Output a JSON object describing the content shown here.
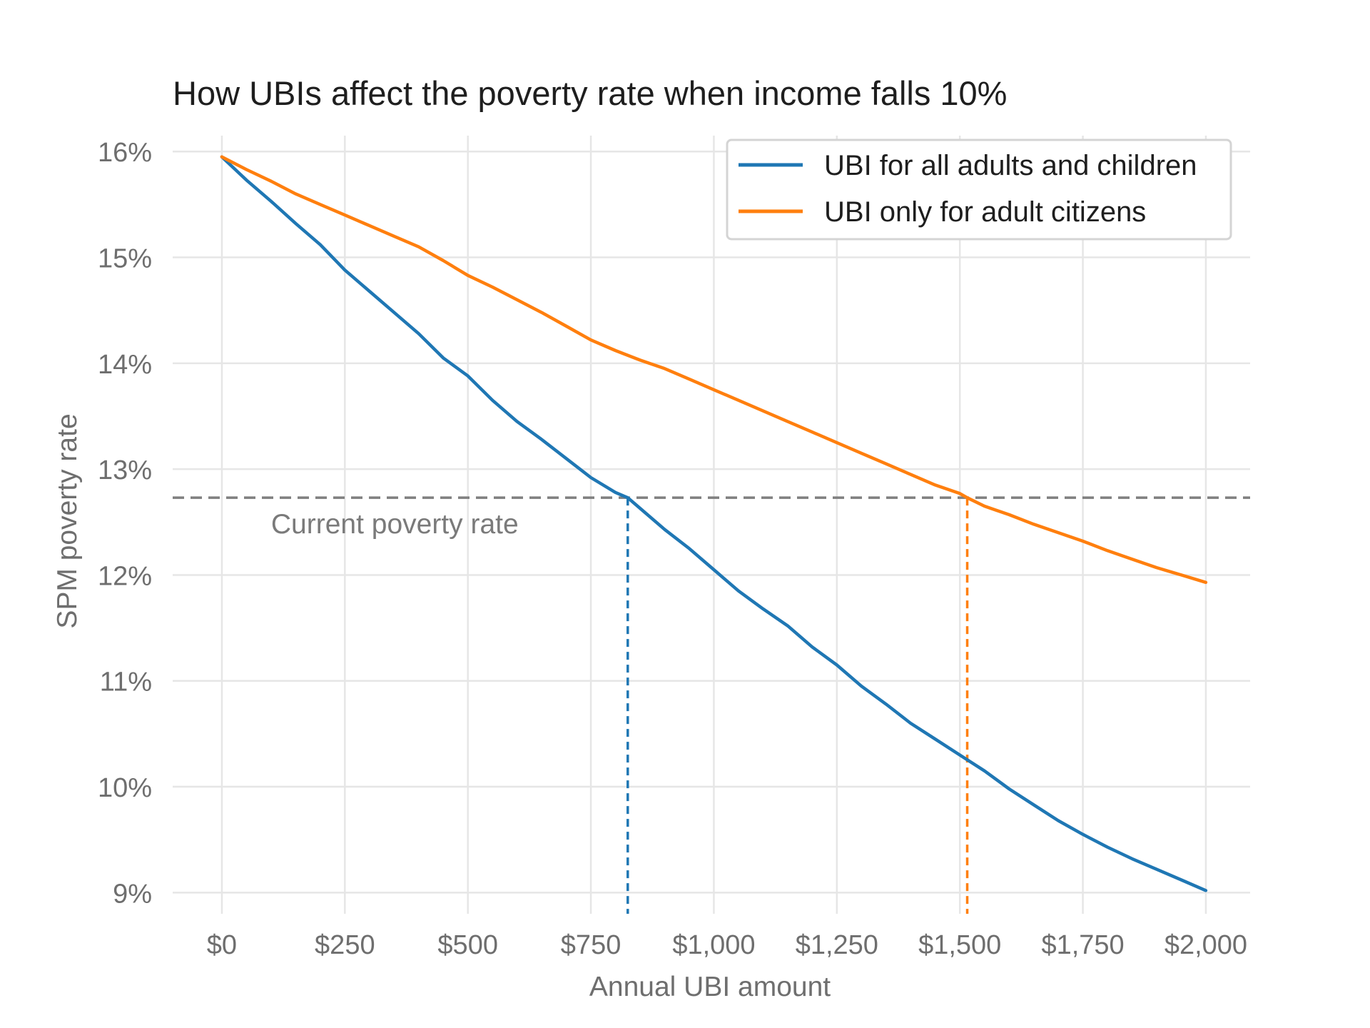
{
  "chart_data": {
    "type": "line",
    "title": "How UBIs affect the poverty rate when income falls 10%",
    "xlabel": "Annual UBI amount",
    "ylabel": "SPM poverty rate",
    "xlim": [
      -100,
      2090
    ],
    "ylim": [
      8.8,
      16.15
    ],
    "x_ticks": [
      {
        "value": 0,
        "label": "$0"
      },
      {
        "value": 250,
        "label": "$250"
      },
      {
        "value": 500,
        "label": "$500"
      },
      {
        "value": 750,
        "label": "$750"
      },
      {
        "value": 1000,
        "label": "$1,000"
      },
      {
        "value": 1250,
        "label": "$1,250"
      },
      {
        "value": 1500,
        "label": "$1,500"
      },
      {
        "value": 1750,
        "label": "$1,750"
      },
      {
        "value": 2000,
        "label": "$2,000"
      }
    ],
    "y_ticks": [
      {
        "value": 9,
        "label": "9%"
      },
      {
        "value": 10,
        "label": "10%"
      },
      {
        "value": 11,
        "label": "11%"
      },
      {
        "value": 12,
        "label": "12%"
      },
      {
        "value": 13,
        "label": "13%"
      },
      {
        "value": 14,
        "label": "14%"
      },
      {
        "value": 15,
        "label": "15%"
      },
      {
        "value": 16,
        "label": "16%"
      }
    ],
    "grid": true,
    "legend_position": "top-right",
    "series": [
      {
        "name": "UBI for all adults and children",
        "color": "#1f77b4",
        "x": [
          0,
          50,
          100,
          150,
          200,
          250,
          300,
          350,
          400,
          450,
          500,
          550,
          600,
          650,
          700,
          750,
          800,
          825,
          850,
          900,
          950,
          1000,
          1050,
          1100,
          1150,
          1200,
          1250,
          1300,
          1350,
          1400,
          1450,
          1500,
          1550,
          1600,
          1650,
          1700,
          1750,
          1800,
          1850,
          1900,
          1950,
          2000
        ],
        "y": [
          15.95,
          15.73,
          15.53,
          15.32,
          15.12,
          14.88,
          14.68,
          14.48,
          14.28,
          14.05,
          13.88,
          13.65,
          13.45,
          13.28,
          13.1,
          12.92,
          12.78,
          12.73,
          12.63,
          12.43,
          12.25,
          12.05,
          11.85,
          11.68,
          11.52,
          11.32,
          11.15,
          10.95,
          10.78,
          10.6,
          10.45,
          10.3,
          10.15,
          9.98,
          9.83,
          9.68,
          9.55,
          9.43,
          9.32,
          9.22,
          9.12,
          9.02
        ]
      },
      {
        "name": "UBI only for adult citizens",
        "color": "#ff7f0e",
        "x": [
          0,
          50,
          100,
          150,
          200,
          250,
          300,
          350,
          400,
          450,
          500,
          550,
          600,
          650,
          700,
          750,
          800,
          850,
          900,
          950,
          1000,
          1050,
          1100,
          1150,
          1200,
          1250,
          1300,
          1350,
          1400,
          1450,
          1500,
          1515,
          1550,
          1600,
          1650,
          1700,
          1750,
          1800,
          1850,
          1900,
          1950,
          2000
        ],
        "y": [
          15.95,
          15.83,
          15.72,
          15.6,
          15.5,
          15.4,
          15.3,
          15.2,
          15.1,
          14.97,
          14.83,
          14.72,
          14.6,
          14.48,
          14.35,
          14.22,
          14.12,
          14.03,
          13.95,
          13.85,
          13.75,
          13.65,
          13.55,
          13.45,
          13.35,
          13.25,
          13.15,
          13.05,
          12.95,
          12.85,
          12.77,
          12.73,
          12.65,
          12.57,
          12.48,
          12.4,
          12.32,
          12.23,
          12.15,
          12.07,
          12.0,
          11.93
        ]
      }
    ],
    "reference_line": {
      "y": 12.73,
      "label": "Current poverty rate",
      "color": "#7f7f7f",
      "style": "dashed"
    },
    "vertical_markers": [
      {
        "x": 825,
        "y": 12.73,
        "color": "#1f77b4",
        "style": "dashed"
      },
      {
        "x": 1515,
        "y": 12.73,
        "color": "#ff7f0e",
        "style": "dashed"
      }
    ]
  }
}
